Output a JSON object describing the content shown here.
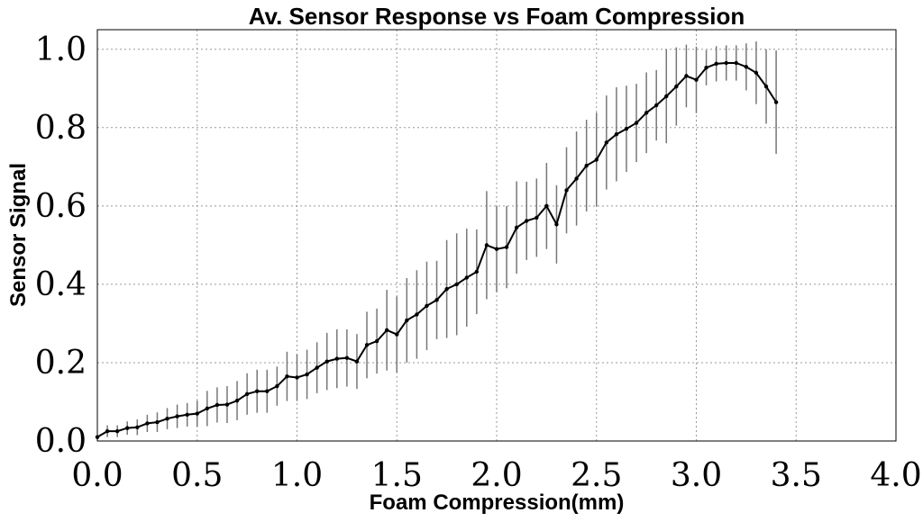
{
  "chart_data": {
    "type": "line",
    "title": "Av. Sensor Response vs Foam Compression",
    "xlabel": "Foam Compression(mm)",
    "ylabel": "Sensor Signal",
    "xlim": [
      0.0,
      4.0
    ],
    "ylim": [
      0.0,
      1.05
    ],
    "xticks": [
      "0.0",
      "0.5",
      "1.0",
      "1.5",
      "2.0",
      "2.5",
      "3.0",
      "3.5",
      "4.0"
    ],
    "yticks": [
      "0.0",
      "0.2",
      "0.4",
      "0.6",
      "0.8",
      "1.0"
    ],
    "grid": true,
    "series": [
      {
        "x": [
          0.0,
          0.05,
          0.1,
          0.15,
          0.2,
          0.25,
          0.3,
          0.35,
          0.4,
          0.45,
          0.5,
          0.55,
          0.6,
          0.65,
          0.7,
          0.75,
          0.8,
          0.85,
          0.9,
          0.95,
          1.0,
          1.05,
          1.1,
          1.15,
          1.2,
          1.25,
          1.3,
          1.35,
          1.4,
          1.45,
          1.5,
          1.55,
          1.6,
          1.65,
          1.7,
          1.75,
          1.8,
          1.85,
          1.9,
          1.95,
          2.0,
          2.05,
          2.1,
          2.15,
          2.2,
          2.25,
          2.3,
          2.35,
          2.4,
          2.45,
          2.5,
          2.55,
          2.6,
          2.65,
          2.7,
          2.75,
          2.8,
          2.85,
          2.9,
          2.95,
          3.0,
          3.05,
          3.1,
          3.15,
          3.2,
          3.25,
          3.3,
          3.35,
          3.4
        ],
        "y": [
          0.01,
          0.025,
          0.025,
          0.033,
          0.035,
          0.045,
          0.048,
          0.057,
          0.063,
          0.067,
          0.07,
          0.083,
          0.092,
          0.093,
          0.103,
          0.12,
          0.127,
          0.127,
          0.14,
          0.165,
          0.162,
          0.17,
          0.187,
          0.203,
          0.21,
          0.212,
          0.203,
          0.245,
          0.255,
          0.283,
          0.272,
          0.308,
          0.323,
          0.345,
          0.36,
          0.388,
          0.4,
          0.417,
          0.432,
          0.5,
          0.49,
          0.495,
          0.545,
          0.562,
          0.57,
          0.6,
          0.553,
          0.64,
          0.67,
          0.703,
          0.718,
          0.762,
          0.783,
          0.797,
          0.812,
          0.838,
          0.857,
          0.88,
          0.905,
          0.932,
          0.922,
          0.953,
          0.963,
          0.965,
          0.965,
          0.955,
          0.94,
          0.905,
          0.865
        ],
        "error": [
          0.005,
          0.015,
          0.015,
          0.017,
          0.02,
          0.022,
          0.025,
          0.027,
          0.03,
          0.03,
          0.033,
          0.045,
          0.045,
          0.047,
          0.05,
          0.053,
          0.055,
          0.055,
          0.05,
          0.063,
          0.06,
          0.063,
          0.065,
          0.073,
          0.075,
          0.073,
          0.07,
          0.085,
          0.083,
          0.103,
          0.097,
          0.108,
          0.113,
          0.113,
          0.1,
          0.125,
          0.13,
          0.125,
          0.108,
          0.138,
          0.11,
          0.105,
          0.118,
          0.1,
          0.1,
          0.11,
          0.1,
          0.11,
          0.12,
          0.117,
          0.12,
          0.12,
          0.12,
          0.11,
          0.1,
          0.103,
          0.09,
          0.12,
          0.1,
          0.08,
          0.085,
          0.045,
          0.045,
          0.045,
          0.045,
          0.06,
          0.08,
          0.095,
          0.132
        ]
      }
    ]
  }
}
